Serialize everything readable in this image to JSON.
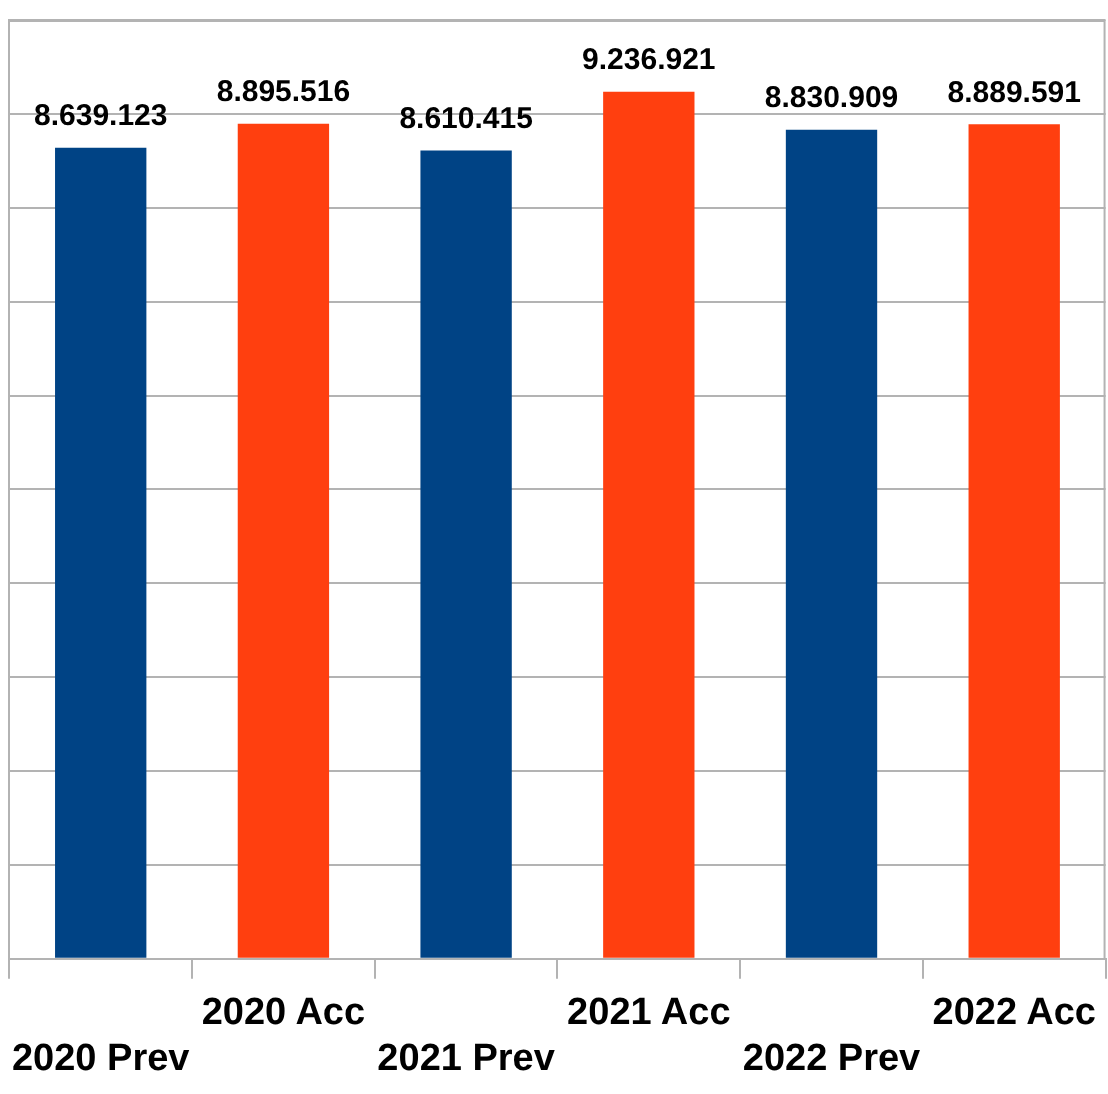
{
  "chart_data": {
    "type": "bar",
    "categories": [
      "2020 Prev",
      "2020 Acc",
      "2021 Prev",
      "2021 Acc",
      "2022 Prev",
      "2022 Acc"
    ],
    "values": [
      8639123,
      8895516,
      8610415,
      9236921,
      8830909,
      8889591
    ],
    "colors": [
      "#004385",
      "#ff3f0f",
      "#004385",
      "#ff3f0f",
      "#004385",
      "#ff3f0f"
    ],
    "value_labels": [
      "8.639.123",
      "8.895.516",
      "8.610.415",
      "9.236.921",
      "8.830.909",
      "8.889.591"
    ],
    "ylim": [
      0,
      10000000
    ],
    "yticks": [
      {
        "value": 0,
        "label": null
      },
      {
        "value": 1000000,
        "label": null
      },
      {
        "value": 2000000,
        "label": null
      },
      {
        "value": 3000000,
        "label": null
      },
      {
        "value": 4000000,
        "label": null
      },
      {
        "value": 5000000,
        "label": null
      },
      {
        "value": 6000000,
        "label": null
      },
      {
        "value": 7000000,
        "label": null
      },
      {
        "value": 8000000,
        "label": null
      },
      {
        "value": 9000000,
        "label": null
      },
      {
        "value": 10000000,
        "label": null
      }
    ],
    "grid": "y",
    "tick_labels": "x",
    "legend": false
  }
}
